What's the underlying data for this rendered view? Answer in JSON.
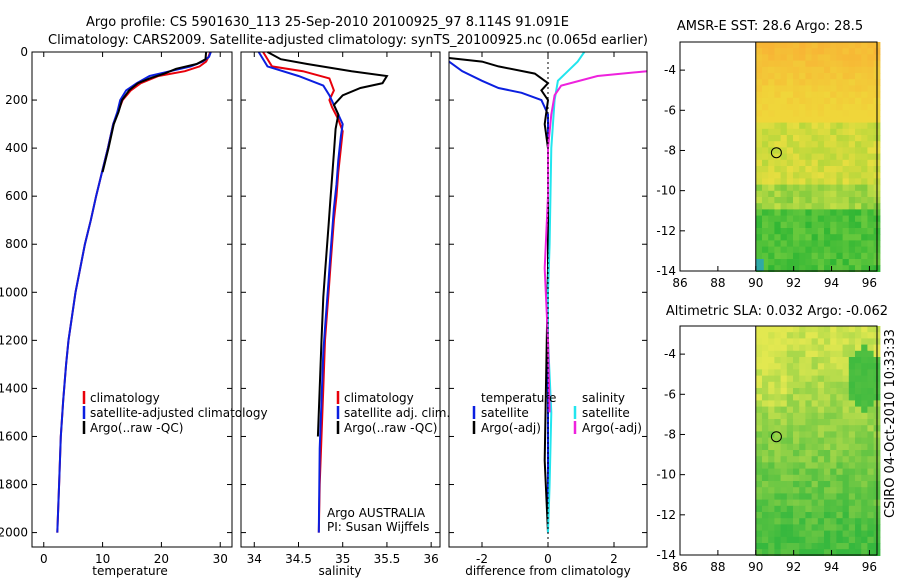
{
  "header": {
    "line1": "Argo profile: CS 5901630_113 25-Sep-2010 20100925_97 8.114S 91.091E",
    "line2": "Climatology: CARS2009. Satellite-adjusted climatology: synTS_20100925.nc (0.065d earlier)"
  },
  "side_text": "CSIRO 04-Oct-2010 10:33:33",
  "colors": {
    "climatology": "#e8000b",
    "satellite": "#0b1fe0",
    "argo": "#000000",
    "cyan": "#22e5ee",
    "magenta": "#ee22dd"
  },
  "chart_data": [
    {
      "type": "line",
      "id": "temperature",
      "xlabel": "temperature",
      "ylabel": "",
      "xlim": [
        -2,
        32
      ],
      "ylim": [
        2060,
        0
      ],
      "y_reversed": true,
      "xticks": [
        0,
        10,
        20,
        30
      ],
      "xticklabels": [
        "0",
        "10",
        "20",
        "30"
      ],
      "yticks": [
        0,
        200,
        400,
        600,
        800,
        1000,
        1200,
        1400,
        1600,
        1800,
        2000
      ],
      "yticklabels": [
        "0",
        "200",
        "400",
        "600",
        "800",
        "1000",
        "1200",
        "1400",
        "1600",
        "1800",
        "2000"
      ],
      "legend": [
        "climatology",
        "satellite-adjusted climatology",
        "Argo(..raw -QC)"
      ],
      "series": [
        {
          "name": "climatology",
          "color": "#e8000b",
          "x": [
            28.3,
            28.0,
            27.6,
            26.5,
            24.0,
            19.5,
            16.5,
            14.8,
            13.4,
            12.6,
            11.8,
            10.9,
            9.9,
            8.9,
            8.0,
            7.0,
            6.2,
            5.4,
            4.8,
            4.2,
            3.8,
            3.3,
            2.9,
            2.6,
            2.3
          ],
          "y": [
            0,
            20,
            40,
            60,
            80,
            100,
            130,
            160,
            200,
            250,
            300,
            400,
            500,
            600,
            700,
            800,
            900,
            1000,
            1100,
            1200,
            1300,
            1450,
            1600,
            1800,
            2000
          ]
        },
        {
          "name": "satellite-adjusted climatology",
          "color": "#0b1fe0",
          "x": [
            28.4,
            28.1,
            27.0,
            25.0,
            21.5,
            18.0,
            15.8,
            14.0,
            13.0,
            12.5,
            11.8,
            10.9,
            9.9,
            8.9,
            8.0,
            7.0,
            6.2,
            5.4,
            4.8,
            4.2,
            3.8,
            3.3,
            2.9,
            2.6,
            2.3
          ],
          "y": [
            0,
            20,
            40,
            60,
            80,
            100,
            130,
            160,
            200,
            250,
            300,
            400,
            500,
            600,
            700,
            800,
            900,
            1000,
            1100,
            1200,
            1300,
            1450,
            1600,
            1800,
            2000
          ]
        },
        {
          "name": "Argo(..raw -QC)",
          "color": "#000000",
          "x": [
            27.6,
            27.5,
            26.0,
            22.5,
            20.5,
            18.0,
            16.0,
            14.5,
            13.3,
            12.7,
            11.9,
            11.0,
            10.0
          ],
          "y": [
            0,
            30,
            50,
            70,
            90,
            110,
            130,
            160,
            200,
            250,
            300,
            400,
            500
          ]
        }
      ]
    },
    {
      "type": "line",
      "id": "salinity",
      "xlabel": "salinity",
      "ylabel": "",
      "xlim": [
        33.85,
        36.1
      ],
      "ylim": [
        2060,
        0
      ],
      "y_reversed": true,
      "xticks": [
        34,
        34.5,
        35,
        35.5,
        36
      ],
      "xticklabels": [
        "34",
        "34.5",
        "35",
        "35.5",
        "36"
      ],
      "legend": [
        "climatology",
        "satellite adj. clim.",
        "Argo(..raw -QC)"
      ],
      "annotations": [
        "Argo AUSTRALIA",
        "PI: Susan Wijffels"
      ],
      "series": [
        {
          "name": "climatology",
          "color": "#e8000b",
          "x": [
            34.1,
            34.2,
            34.55,
            34.85,
            34.9,
            34.85,
            34.88,
            34.95,
            35.0,
            34.98,
            34.95,
            34.93,
            34.9,
            34.88,
            34.86,
            34.84,
            34.82,
            34.8,
            34.78,
            34.76,
            34.74,
            34.73
          ],
          "y": [
            0,
            60,
            80,
            110,
            160,
            200,
            230,
            280,
            330,
            400,
            500,
            600,
            700,
            800,
            900,
            1000,
            1100,
            1200,
            1400,
            1600,
            1800,
            2000
          ]
        },
        {
          "name": "satellite adj. clim.",
          "color": "#0b1fe0",
          "x": [
            34.05,
            34.15,
            34.5,
            34.78,
            34.85,
            34.9,
            34.95,
            35.0,
            34.98,
            34.95,
            34.93,
            34.9,
            34.88,
            34.86,
            34.84,
            34.82,
            34.8,
            34.78,
            34.76,
            34.74,
            34.73
          ],
          "y": [
            0,
            60,
            100,
            140,
            180,
            220,
            260,
            300,
            350,
            450,
            550,
            650,
            750,
            850,
            950,
            1050,
            1150,
            1250,
            1450,
            1650,
            2000
          ]
        },
        {
          "name": "Argo(..raw -QC)",
          "color": "#000000",
          "x": [
            34.15,
            34.3,
            34.6,
            35.1,
            35.5,
            35.45,
            35.2,
            35.0,
            34.9,
            34.95,
            34.92,
            34.9,
            34.88,
            34.86,
            34.84,
            34.82,
            34.8,
            34.78,
            34.76,
            34.74,
            34.72
          ],
          "y": [
            0,
            30,
            50,
            80,
            100,
            130,
            150,
            180,
            220,
            260,
            320,
            420,
            520,
            620,
            720,
            820,
            920,
            1020,
            1200,
            1400,
            1600
          ]
        }
      ]
    },
    {
      "type": "line",
      "id": "difference",
      "xlabel": "difference from climatology",
      "ylabel": "",
      "xlim": [
        -3,
        3
      ],
      "ylim": [
        2060,
        0
      ],
      "y_reversed": true,
      "xticks": [
        -2,
        0,
        2
      ],
      "xticklabels": [
        "-2",
        "0",
        "2"
      ],
      "legend_left": [
        "temperature",
        "satellite",
        "Argo(-adj)"
      ],
      "legend_right": [
        "salinity",
        "satellite",
        "Argo(-adj)"
      ],
      "series": [
        {
          "name": "temperature satellite",
          "color": "#0b1fe0",
          "x": [
            -3.0,
            -2.6,
            -2.0,
            -1.5,
            -0.8,
            -0.2,
            0.0,
            0.0,
            0.0,
            0.0,
            0.0,
            0.0
          ],
          "y": [
            40,
            80,
            120,
            150,
            170,
            200,
            260,
            400,
            800,
            1200,
            1600,
            2000
          ]
        },
        {
          "name": "temperature Argo(-adj)",
          "color": "#000000",
          "x": [
            -3.0,
            -2.0,
            -1.5,
            -0.4,
            0.0,
            -0.2,
            0.0,
            -0.1,
            0.0,
            0.0,
            0.0,
            -0.1,
            0.0
          ],
          "y": [
            25,
            40,
            60,
            90,
            130,
            160,
            200,
            300,
            400,
            600,
            900,
            1700,
            2000
          ]
        },
        {
          "name": "salinity satellite",
          "color": "#22e5ee",
          "x": [
            1.1,
            0.9,
            0.6,
            0.3,
            0.2,
            0.1,
            0.05,
            0.0,
            0.0,
            0.1,
            0.05,
            0.0
          ],
          "y": [
            0,
            40,
            80,
            120,
            200,
            400,
            800,
            1000,
            1200,
            1500,
            1800,
            2000
          ]
        },
        {
          "name": "salinity Argo(-adj)",
          "color": "#ee22dd",
          "x": [
            3.0,
            1.5,
            0.4,
            0.2,
            0.1,
            0.0,
            0.0,
            -0.1,
            0.0,
            0.05
          ],
          "y": [
            80,
            100,
            140,
            180,
            260,
            400,
            600,
            900,
            1200,
            1500
          ]
        }
      ]
    },
    {
      "type": "heatmap",
      "id": "sst-map",
      "title": "AMSR-E SST: 28.6 Argo: 28.5",
      "xlim": [
        86,
        96.4
      ],
      "ylim": [
        -14,
        -2.6
      ],
      "xticks": [
        86,
        88,
        90,
        92,
        94,
        96
      ],
      "yticks": [
        -4,
        -6,
        -8,
        -10,
        -12,
        -14
      ],
      "data_x_start": 90,
      "marker": {
        "lon": 91.09,
        "lat": -8.11
      }
    },
    {
      "type": "heatmap",
      "id": "sla-map",
      "title": "Altimetric SLA: 0.032 Argo: -0.062",
      "xlim": [
        86,
        96.4
      ],
      "ylim": [
        -14,
        -2.6
      ],
      "xticks": [
        86,
        88,
        90,
        92,
        94,
        96
      ],
      "yticks": [
        -4,
        -6,
        -8,
        -10,
        -12,
        -14
      ],
      "data_x_start": 90,
      "marker": {
        "lon": 91.09,
        "lat": -8.11
      }
    }
  ]
}
